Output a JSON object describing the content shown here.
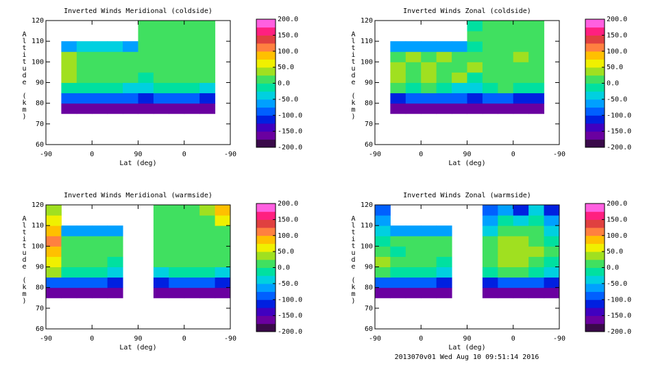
{
  "footer": "2013070v01 Wed Aug 10 09:51:14 2016",
  "chart_data": [
    {
      "type": "heatmap",
      "title": "Inverted Winds Meridional (coldside)",
      "xlabel": "Lat (deg)",
      "ylabel": "Altitude (km)",
      "xlim": [
        0,
        360
      ],
      "xticks": [
        {
          "value": 0,
          "label": "-90"
        },
        {
          "value": 90,
          "label": "0"
        },
        {
          "value": 180,
          "label": "90"
        },
        {
          "value": 270,
          "label": "0"
        },
        {
          "value": 360,
          "label": "-90"
        }
      ],
      "ylim": [
        60,
        120
      ],
      "yticks": [
        60,
        70,
        80,
        90,
        100,
        110,
        120
      ],
      "x_edges": [
        0,
        30,
        60,
        90,
        120,
        150,
        180,
        210,
        240,
        270,
        300,
        330,
        360
      ],
      "y_edges": [
        75,
        80,
        85,
        90,
        95,
        100,
        105,
        110,
        115,
        120
      ],
      "z": [
        [
          null,
          -175,
          -175,
          -175,
          -175,
          -175,
          -175,
          -175,
          -175,
          -175,
          -175,
          null
        ],
        [
          null,
          -100,
          -90,
          -90,
          -90,
          -90,
          -110,
          -100,
          -100,
          -100,
          -110,
          null
        ],
        [
          null,
          -20,
          -10,
          -10,
          -20,
          -30,
          -40,
          -20,
          -10,
          -20,
          -30,
          null
        ],
        [
          null,
          35,
          10,
          15,
          5,
          10,
          -10,
          20,
          0,
          10,
          5,
          null
        ],
        [
          null,
          30,
          5,
          20,
          10,
          15,
          20,
          10,
          15,
          0,
          10,
          null
        ],
        [
          null,
          25,
          15,
          10,
          20,
          5,
          10,
          15,
          5,
          20,
          0,
          null
        ],
        [
          null,
          -60,
          -50,
          -50,
          -50,
          -60,
          15,
          10,
          20,
          10,
          5,
          null
        ],
        [
          null,
          null,
          null,
          null,
          null,
          null,
          10,
          15,
          10,
          15,
          10,
          null
        ],
        [
          null,
          null,
          null,
          null,
          null,
          null,
          5,
          10,
          15,
          10,
          5,
          null
        ]
      ],
      "colorbar": {
        "lim": [
          -200,
          200
        ],
        "ticks": [
          {
            "value": 200,
            "label": "200.0"
          },
          {
            "value": 150,
            "label": "150.0"
          },
          {
            "value": 100,
            "label": "100.0"
          },
          {
            "value": 50,
            "label": "50.0"
          },
          {
            "value": 0,
            "label": "0.0"
          },
          {
            "value": -50,
            "label": "-50.0"
          },
          {
            "value": -100,
            "label": "-100.0"
          },
          {
            "value": -150,
            "label": "-150.0"
          },
          {
            "value": -200,
            "label": "-200.0"
          }
        ],
        "colors": [
          "#3a0a4a",
          "#6a00a0",
          "#4000c0",
          "#0020e0",
          "#0060ff",
          "#00a0ff",
          "#00d0e0",
          "#00e0a0",
          "#40e060",
          "#a0e020",
          "#f0f000",
          "#ffc000",
          "#ff8040",
          "#e04040",
          "#ff2080",
          "#ff60e0"
        ]
      }
    },
    {
      "type": "heatmap",
      "title": "Inverted Winds Zonal (coldside)",
      "xlabel": "Lat (deg)",
      "ylabel": "Altitude (km)",
      "xlim": [
        0,
        360
      ],
      "xticks": [
        {
          "value": 0,
          "label": "-90"
        },
        {
          "value": 90,
          "label": "0"
        },
        {
          "value": 180,
          "label": "90"
        },
        {
          "value": 270,
          "label": "0"
        },
        {
          "value": 360,
          "label": "-90"
        }
      ],
      "ylim": [
        60,
        120
      ],
      "yticks": [
        60,
        70,
        80,
        90,
        100,
        110,
        120
      ],
      "x_edges": [
        0,
        30,
        60,
        90,
        120,
        150,
        180,
        210,
        240,
        270,
        300,
        330,
        360
      ],
      "y_edges": [
        75,
        80,
        85,
        90,
        95,
        100,
        105,
        110,
        115,
        120
      ],
      "z": [
        [
          null,
          -175,
          -175,
          -175,
          -175,
          -175,
          -175,
          -175,
          -175,
          -175,
          -175,
          null
        ],
        [
          null,
          -110,
          -100,
          -100,
          -100,
          -100,
          -120,
          -100,
          -100,
          -110,
          -120,
          null
        ],
        [
          null,
          20,
          -10,
          0,
          -20,
          -30,
          -40,
          -10,
          0,
          -10,
          -20,
          null
        ],
        [
          null,
          40,
          20,
          30,
          10,
          35,
          -20,
          10,
          20,
          0,
          15,
          null
        ],
        [
          null,
          30,
          10,
          35,
          20,
          10,
          30,
          0,
          10,
          20,
          5,
          null
        ],
        [
          null,
          20,
          30,
          10,
          25,
          20,
          10,
          20,
          5,
          25,
          0,
          null
        ],
        [
          null,
          -70,
          -60,
          -60,
          -60,
          -70,
          -10,
          10,
          15,
          10,
          5,
          null
        ],
        [
          null,
          null,
          null,
          null,
          null,
          null,
          0,
          10,
          5,
          10,
          0,
          null
        ],
        [
          null,
          null,
          null,
          null,
          null,
          null,
          -10,
          0,
          10,
          5,
          0,
          null
        ]
      ],
      "colorbar": {
        "lim": [
          -200,
          200
        ],
        "ticks": [
          {
            "value": 200,
            "label": "200.0"
          },
          {
            "value": 150,
            "label": "150.0"
          },
          {
            "value": 100,
            "label": "100.0"
          },
          {
            "value": 50,
            "label": "50.0"
          },
          {
            "value": 0,
            "label": "0.0"
          },
          {
            "value": -50,
            "label": "-50.0"
          },
          {
            "value": -100,
            "label": "-100.0"
          },
          {
            "value": -150,
            "label": "-150.0"
          },
          {
            "value": -200,
            "label": "-200.0"
          }
        ],
        "colors": [
          "#3a0a4a",
          "#6a00a0",
          "#4000c0",
          "#0020e0",
          "#0060ff",
          "#00a0ff",
          "#00d0e0",
          "#00e0a0",
          "#40e060",
          "#a0e020",
          "#f0f000",
          "#ffc000",
          "#ff8040",
          "#e04040",
          "#ff2080",
          "#ff60e0"
        ]
      }
    },
    {
      "type": "heatmap",
      "title": "Inverted Winds Meridional (warmside)",
      "xlabel": "Lat (deg)",
      "ylabel": "Altitude (km)",
      "xlim": [
        0,
        360
      ],
      "xticks": [
        {
          "value": 0,
          "label": "-90"
        },
        {
          "value": 90,
          "label": "0"
        },
        {
          "value": 180,
          "label": "90"
        },
        {
          "value": 270,
          "label": "0"
        },
        {
          "value": 360,
          "label": "-90"
        }
      ],
      "ylim": [
        60,
        120
      ],
      "yticks": [
        60,
        70,
        80,
        90,
        100,
        110,
        120
      ],
      "x_edges": [
        0,
        30,
        60,
        90,
        120,
        150,
        180,
        210,
        240,
        270,
        300,
        330,
        360
      ],
      "y_edges": [
        75,
        80,
        85,
        90,
        95,
        100,
        105,
        110,
        115,
        120
      ],
      "z": [
        [
          -175,
          -175,
          -175,
          -175,
          -175,
          null,
          null,
          -175,
          -175,
          -175,
          -175,
          -175
        ],
        [
          -80,
          -100,
          -100,
          -100,
          -110,
          null,
          null,
          -110,
          -100,
          -100,
          -100,
          -120
        ],
        [
          30,
          -10,
          -20,
          -20,
          -30,
          null,
          null,
          -30,
          -10,
          -20,
          -10,
          -40
        ],
        [
          50,
          20,
          0,
          10,
          -10,
          null,
          null,
          10,
          20,
          0,
          15,
          0
        ],
        [
          80,
          10,
          15,
          5,
          10,
          null,
          null,
          0,
          10,
          20,
          5,
          10
        ],
        [
          110,
          5,
          10,
          0,
          5,
          null,
          null,
          15,
          5,
          10,
          20,
          0
        ],
        [
          90,
          -60,
          -60,
          -60,
          -70,
          null,
          null,
          10,
          20,
          5,
          10,
          15
        ],
        [
          60,
          null,
          null,
          null,
          null,
          null,
          null,
          5,
          15,
          10,
          20,
          60
        ],
        [
          40,
          null,
          null,
          null,
          null,
          null,
          null,
          10,
          20,
          5,
          30,
          80
        ]
      ],
      "colorbar": {
        "lim": [
          -200,
          200
        ],
        "ticks": [
          {
            "value": 200,
            "label": "200.0"
          },
          {
            "value": 150,
            "label": "150.0"
          },
          {
            "value": 100,
            "label": "100.0"
          },
          {
            "value": 50,
            "label": "50.0"
          },
          {
            "value": 0,
            "label": "0.0"
          },
          {
            "value": -50,
            "label": "-50.0"
          },
          {
            "value": -100,
            "label": "-100.0"
          },
          {
            "value": -150,
            "label": "-150.0"
          },
          {
            "value": -200,
            "label": "-200.0"
          }
        ],
        "colors": [
          "#3a0a4a",
          "#6a00a0",
          "#4000c0",
          "#0020e0",
          "#0060ff",
          "#00a0ff",
          "#00d0e0",
          "#00e0a0",
          "#40e060",
          "#a0e020",
          "#f0f000",
          "#ffc000",
          "#ff8040",
          "#e04040",
          "#ff2080",
          "#ff60e0"
        ]
      }
    },
    {
      "type": "heatmap",
      "title": "Inverted Winds Zonal (warmside)",
      "xlabel": "Lat (deg)",
      "ylabel": "Altitude (km)",
      "xlim": [
        0,
        360
      ],
      "xticks": [
        {
          "value": 0,
          "label": "-90"
        },
        {
          "value": 90,
          "label": "0"
        },
        {
          "value": 180,
          "label": "90"
        },
        {
          "value": 270,
          "label": "0"
        },
        {
          "value": 360,
          "label": "-90"
        }
      ],
      "ylim": [
        60,
        120
      ],
      "yticks": [
        60,
        70,
        80,
        90,
        100,
        110,
        120
      ],
      "x_edges": [
        0,
        30,
        60,
        90,
        120,
        150,
        180,
        210,
        240,
        270,
        300,
        330,
        360
      ],
      "y_edges": [
        75,
        80,
        85,
        90,
        95,
        100,
        105,
        110,
        115,
        120
      ],
      "z": [
        [
          -175,
          -175,
          -175,
          -175,
          -175,
          null,
          null,
          -175,
          -175,
          -175,
          -175,
          -175
        ],
        [
          -90,
          -100,
          -100,
          -100,
          -110,
          null,
          null,
          -110,
          -100,
          -100,
          -100,
          -120
        ],
        [
          0,
          -20,
          -20,
          -20,
          -30,
          null,
          null,
          -20,
          10,
          0,
          -10,
          -40
        ],
        [
          30,
          0,
          10,
          0,
          -20,
          null,
          null,
          10,
          40,
          30,
          20,
          -10
        ],
        [
          20,
          -10,
          20,
          10,
          0,
          null,
          null,
          10,
          35,
          40,
          25,
          0
        ],
        [
          -20,
          10,
          0,
          20,
          10,
          null,
          null,
          0,
          30,
          40,
          20,
          -10
        ],
        [
          -40,
          -60,
          -60,
          -60,
          -70,
          null,
          null,
          -30,
          20,
          10,
          0,
          -30
        ],
        [
          -60,
          null,
          null,
          null,
          null,
          null,
          null,
          -60,
          -20,
          -40,
          -20,
          -60
        ],
        [
          -90,
          null,
          null,
          null,
          null,
          null,
          null,
          -100,
          -60,
          -110,
          -50,
          -110
        ]
      ],
      "colorbar": {
        "lim": [
          -200,
          200
        ],
        "ticks": [
          {
            "value": 200,
            "label": "200.0"
          },
          {
            "value": 150,
            "label": "150.0"
          },
          {
            "value": 100,
            "label": "100.0"
          },
          {
            "value": 50,
            "label": "50.0"
          },
          {
            "value": 0,
            "label": "0.0"
          },
          {
            "value": -50,
            "label": "-50.0"
          },
          {
            "value": -100,
            "label": "-100.0"
          },
          {
            "value": -150,
            "label": "-150.0"
          },
          {
            "value": -200,
            "label": "-200.0"
          }
        ],
        "colors": [
          "#3a0a4a",
          "#6a00a0",
          "#4000c0",
          "#0020e0",
          "#0060ff",
          "#00a0ff",
          "#00d0e0",
          "#00e0a0",
          "#40e060",
          "#a0e020",
          "#f0f000",
          "#ffc000",
          "#ff8040",
          "#e04040",
          "#ff2080",
          "#ff60e0"
        ]
      }
    }
  ]
}
